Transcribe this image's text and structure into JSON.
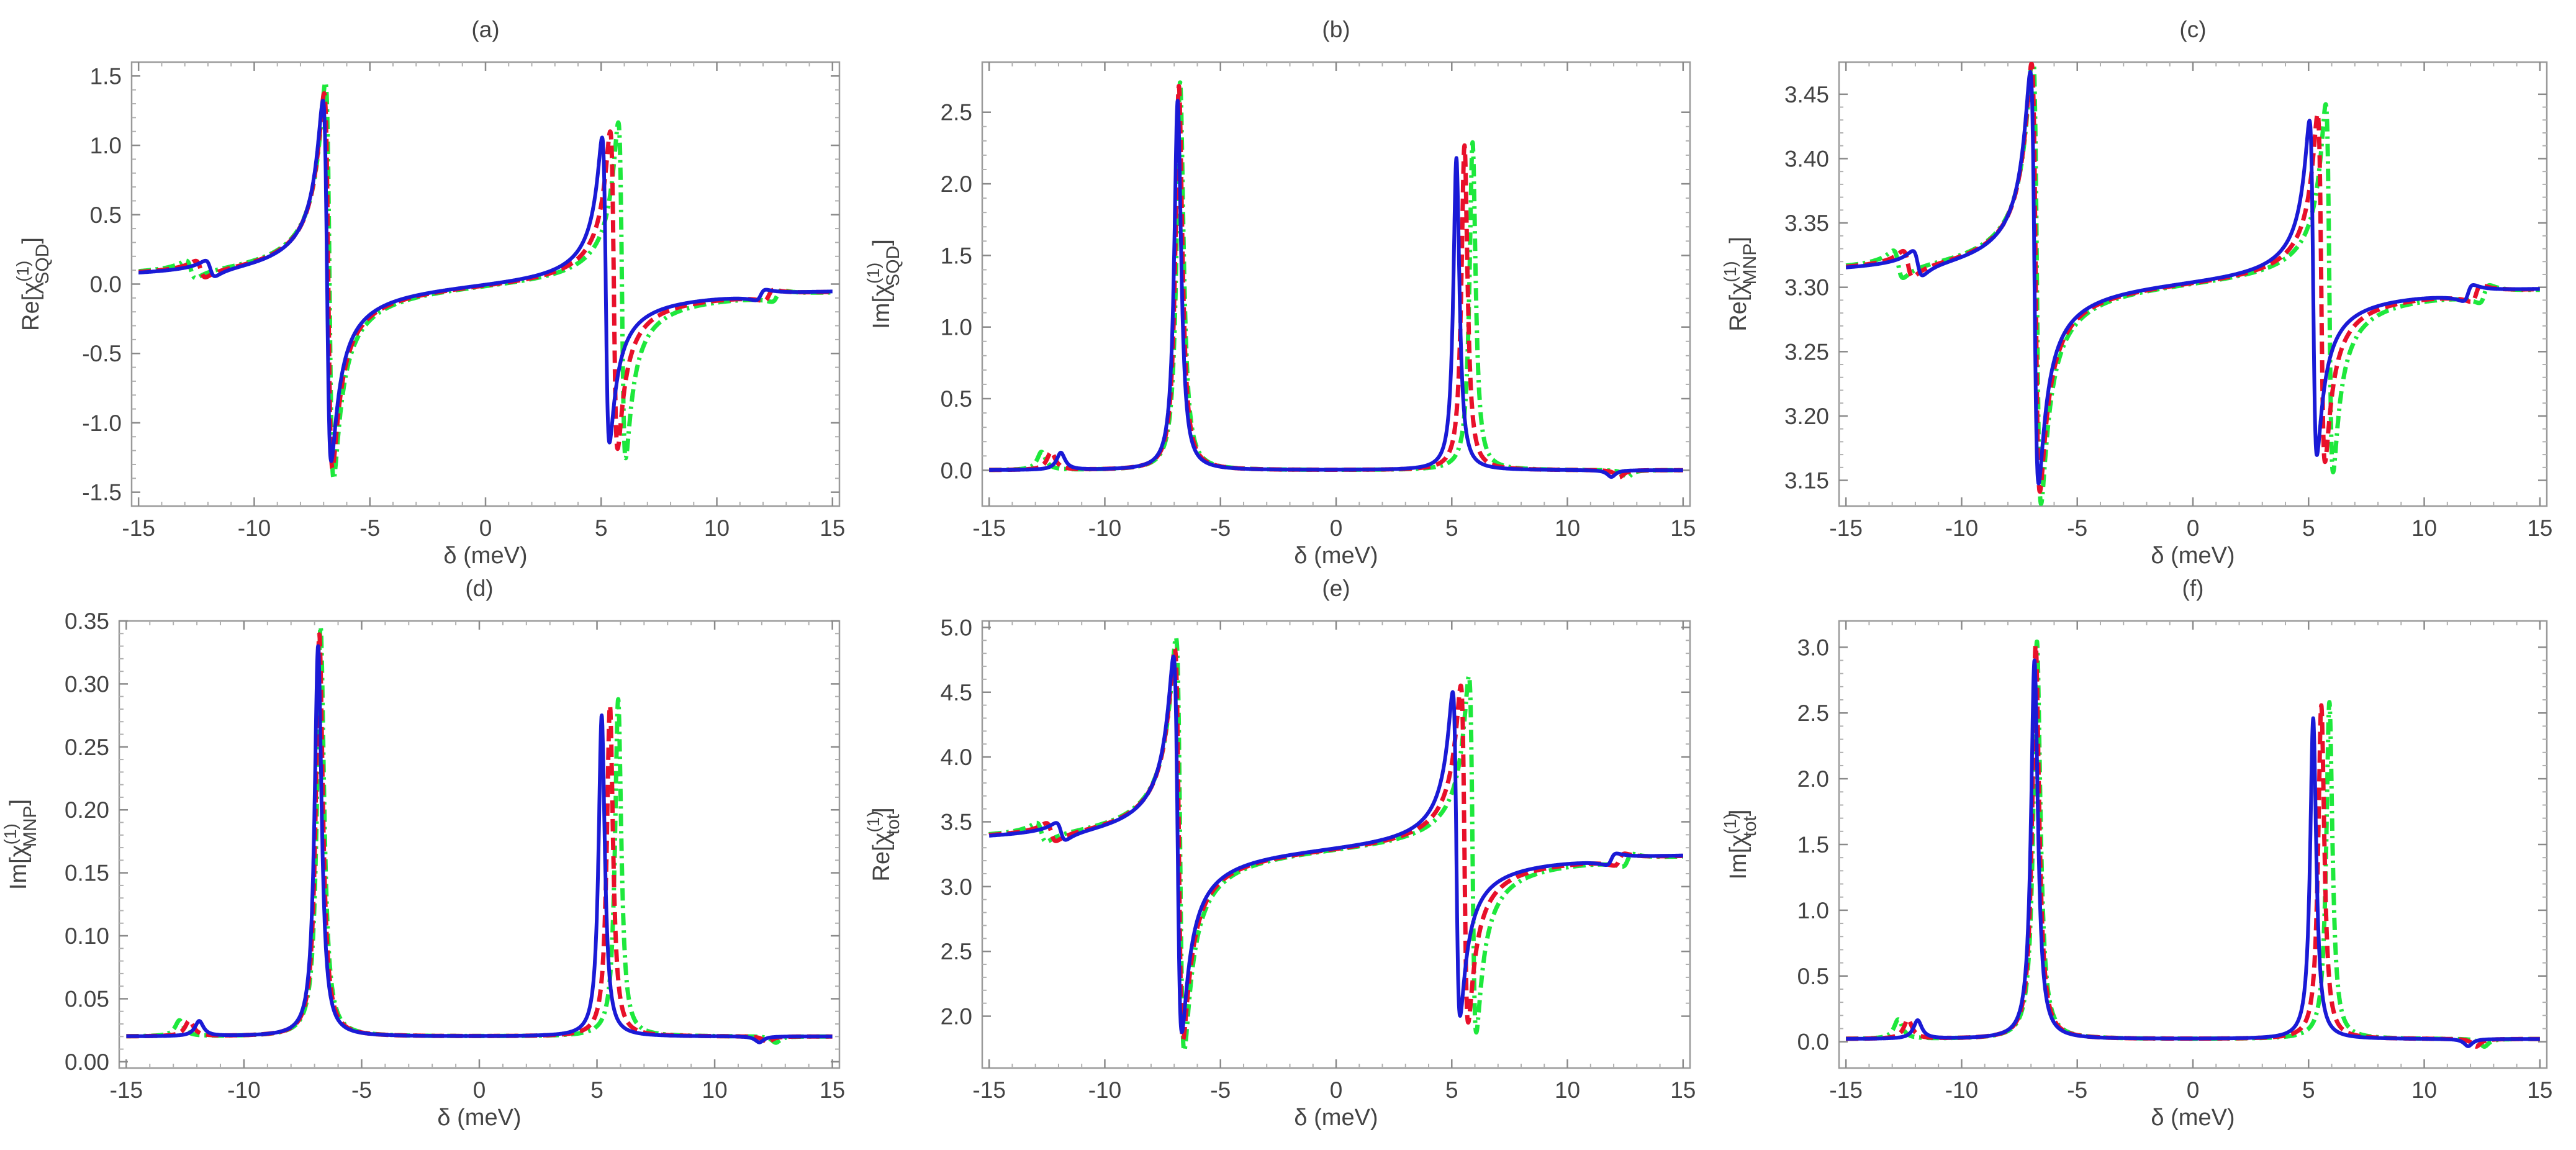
{
  "figure": {
    "colors": {
      "blue": "#1a1ad6",
      "red": "#e8102a",
      "green": "#1ee83c",
      "axis": "#9a9a9a",
      "text": "#444444"
    }
  },
  "chart_data": [
    {
      "type": "line",
      "panel": "(a)",
      "title": "(a)",
      "xlabel": "δ (meV)",
      "ylabel_base": "Re[χ",
      "ylabel_sup": "(1)",
      "ylabel_sub": "SQD",
      "ylabel_end": "]",
      "xlim": [
        -15.3,
        15.3
      ],
      "ylim": [
        -1.6,
        1.6
      ],
      "xticks": [
        -15,
        -10,
        -5,
        0,
        5,
        10,
        15
      ],
      "yticks": [
        -1.5,
        -1.0,
        -0.5,
        0.0,
        0.5,
        1.0,
        1.5
      ],
      "ytick_labels": [
        "-1.5",
        "-1.0",
        "-0.5",
        "0.0",
        "0.5",
        "1.0",
        "1.5"
      ],
      "curve": {
        "kind": "dispersive",
        "baseline": 0.0,
        "r1": {
          "x0": -6.85,
          "amp": 1.3
        },
        "r2": {
          "x0": 5.2,
          "amp": 1.1
        },
        "small1_x": -11.9,
        "small2_x": 11.9,
        "small_amp": 0.06
      },
      "series": [
        {
          "color": "blue",
          "style": "solid",
          "shift": 0.0,
          "scale": 1.0
        },
        {
          "color": "red",
          "style": "dashed",
          "shift": 0.35,
          "scale": 1.04
        },
        {
          "color": "green",
          "style": "dashdot",
          "shift": 0.7,
          "scale": 1.1
        }
      ]
    },
    {
      "type": "line",
      "panel": "(b)",
      "title": "(b)",
      "xlabel": "δ (meV)",
      "ylabel_base": "Im[χ",
      "ylabel_sup": "(1)",
      "ylabel_sub": "SQD",
      "ylabel_end": "]",
      "xlim": [
        -15.3,
        15.3
      ],
      "ylim": [
        -0.25,
        2.85
      ],
      "xticks": [
        -15,
        -10,
        -5,
        0,
        5,
        10,
        15
      ],
      "yticks": [
        0.0,
        0.5,
        1.0,
        1.5,
        2.0,
        2.5
      ],
      "ytick_labels": [
        "0.0",
        "0.5",
        "1.0",
        "1.5",
        "2.0",
        "2.5"
      ],
      "curve": {
        "kind": "absorptive",
        "baseline": 0.0,
        "r1": {
          "x0": -6.85,
          "amp": 2.58
        },
        "r2": {
          "x0": 5.2,
          "amp": 2.18
        },
        "small1_x": -11.9,
        "small2_x": 11.9,
        "small_amp": 0.12
      },
      "series": [
        {
          "color": "blue",
          "style": "solid",
          "shift": 0.0,
          "scale": 1.0
        },
        {
          "color": "red",
          "style": "dashed",
          "shift": 0.35,
          "scale": 1.04
        },
        {
          "color": "green",
          "style": "dashdot",
          "shift": 0.7,
          "scale": 1.05
        }
      ]
    },
    {
      "type": "line",
      "panel": "(c)",
      "title": "(c)",
      "xlabel": "δ (meV)",
      "ylabel_base": "Re[χ",
      "ylabel_sup": "(1)",
      "ylabel_sub": "MNP",
      "ylabel_end": "]",
      "xlim": [
        -15.3,
        15.3
      ],
      "ylim": [
        3.13,
        3.475
      ],
      "xticks": [
        -15,
        -10,
        -5,
        0,
        5,
        10,
        15
      ],
      "yticks": [
        3.15,
        3.2,
        3.25,
        3.3,
        3.35,
        3.4,
        3.45
      ],
      "ytick_labels": [
        "3.15",
        "3.20",
        "3.25",
        "3.30",
        "3.35",
        "3.40",
        "3.45"
      ],
      "curve": {
        "kind": "dispersive",
        "baseline": 3.305,
        "r1": {
          "x0": -6.85,
          "amp": 0.16
        },
        "r2": {
          "x0": 5.2,
          "amp": 0.13
        },
        "small1_x": -11.9,
        "small2_x": 11.9,
        "small_amp": 0.01
      },
      "series": [
        {
          "color": "blue",
          "style": "solid",
          "shift": 0.0,
          "scale": 1.0
        },
        {
          "color": "red",
          "style": "dashed",
          "shift": 0.35,
          "scale": 1.04
        },
        {
          "color": "green",
          "style": "dashdot",
          "shift": 0.7,
          "scale": 1.1
        }
      ]
    },
    {
      "type": "line",
      "panel": "(d)",
      "title": "(d)",
      "xlabel": "δ (meV)",
      "ylabel_base": "Im[χ",
      "ylabel_sup": "(1)",
      "ylabel_sub": "MNP",
      "ylabel_end": "]",
      "xlim": [
        -15.3,
        15.3
      ],
      "ylim": [
        -0.005,
        0.35
      ],
      "xticks": [
        -15,
        -10,
        -5,
        0,
        5,
        10,
        15
      ],
      "yticks": [
        0.0,
        0.05,
        0.1,
        0.15,
        0.2,
        0.25,
        0.3,
        0.35
      ],
      "ytick_labels": [
        "0.00",
        "0.05",
        "0.10",
        "0.15",
        "0.20",
        "0.25",
        "0.30",
        "0.35"
      ],
      "curve": {
        "kind": "absorptive",
        "baseline": 0.02,
        "r1": {
          "x0": -6.85,
          "amp": 0.31
        },
        "r2": {
          "x0": 5.2,
          "amp": 0.255
        },
        "small1_x": -11.9,
        "small2_x": 11.9,
        "small_amp": 0.012
      },
      "series": [
        {
          "color": "blue",
          "style": "solid",
          "shift": 0.0,
          "scale": 1.0
        },
        {
          "color": "red",
          "style": "dashed",
          "shift": 0.35,
          "scale": 1.03
        },
        {
          "color": "green",
          "style": "dashdot",
          "shift": 0.7,
          "scale": 1.05
        }
      ]
    },
    {
      "type": "line",
      "panel": "(e)",
      "title": "(e)",
      "xlabel": "δ (meV)",
      "ylabel_base": "Re[χ",
      "ylabel_sup": "(1)",
      "ylabel_sub": "tot",
      "ylabel_end": "]",
      "xlim": [
        -15.3,
        15.3
      ],
      "ylim": [
        1.6,
        5.05
      ],
      "xticks": [
        -15,
        -10,
        -5,
        0,
        5,
        10,
        15
      ],
      "yticks": [
        2.0,
        2.5,
        3.0,
        3.5,
        4.0,
        4.5,
        5.0
      ],
      "ytick_labels": [
        "2.0",
        "2.5",
        "3.0",
        "3.5",
        "4.0",
        "4.5",
        "5.0"
      ],
      "curve": {
        "kind": "dispersive",
        "baseline": 3.3,
        "r1": {
          "x0": -6.85,
          "amp": 1.45
        },
        "r2": {
          "x0": 5.2,
          "amp": 1.25
        },
        "small1_x": -11.9,
        "small2_x": 11.9,
        "small_amp": 0.07
      },
      "series": [
        {
          "color": "blue",
          "style": "solid",
          "shift": 0.0,
          "scale": 1.0
        },
        {
          "color": "red",
          "style": "dashed",
          "shift": 0.35,
          "scale": 1.04
        },
        {
          "color": "green",
          "style": "dashdot",
          "shift": 0.7,
          "scale": 1.1
        }
      ]
    },
    {
      "type": "line",
      "panel": "(f)",
      "title": "(f)",
      "xlabel": "δ (meV)",
      "ylabel_base": "Im[χ",
      "ylabel_sup": "(1)",
      "ylabel_sub": "tot",
      "ylabel_end": "]",
      "xlim": [
        -15.3,
        15.3
      ],
      "ylim": [
        -0.2,
        3.2
      ],
      "xticks": [
        -15,
        -10,
        -5,
        0,
        5,
        10,
        15
      ],
      "yticks": [
        0.0,
        0.5,
        1.0,
        1.5,
        2.0,
        2.5,
        3.0
      ],
      "ytick_labels": [
        "0.0",
        "0.5",
        "1.0",
        "1.5",
        "2.0",
        "2.5",
        "3.0"
      ],
      "curve": {
        "kind": "absorptive",
        "baseline": 0.02,
        "r1": {
          "x0": -6.85,
          "amp": 2.88
        },
        "r2": {
          "x0": 5.2,
          "amp": 2.44
        },
        "small1_x": -11.9,
        "small2_x": 11.9,
        "small_amp": 0.14
      },
      "series": [
        {
          "color": "blue",
          "style": "solid",
          "shift": 0.0,
          "scale": 1.0
        },
        {
          "color": "red",
          "style": "dashed",
          "shift": 0.35,
          "scale": 1.04
        },
        {
          "color": "green",
          "style": "dashdot",
          "shift": 0.7,
          "scale": 1.05
        }
      ]
    }
  ]
}
